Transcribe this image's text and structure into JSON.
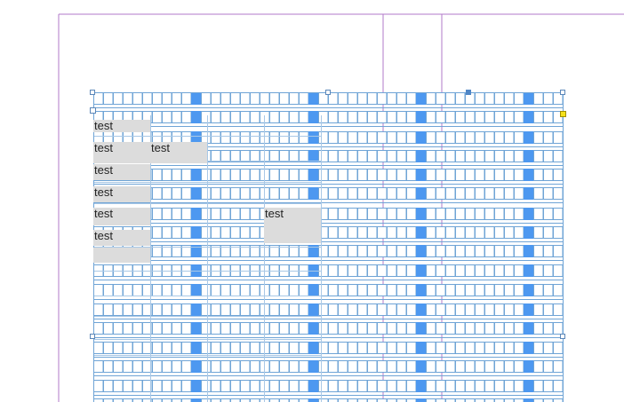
{
  "page": {
    "margin_guide_color": "#b07ac8",
    "frame_color": "#6fa4d6",
    "highlight_color": "#4d98f0",
    "cell_fill_color": "#dcdcdc",
    "handle_outport_color": "#f5e11c"
  },
  "table": {
    "cells": [
      {
        "text": "test"
      },
      {
        "text": "test"
      },
      {
        "text": "test"
      },
      {
        "text": "test"
      },
      {
        "text": "test"
      },
      {
        "text": "test"
      },
      {
        "text": "test"
      },
      {
        "text": "test"
      },
      {
        "text": ""
      }
    ]
  }
}
